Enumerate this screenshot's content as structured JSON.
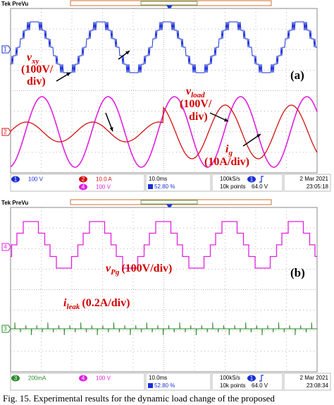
{
  "panels": [
    {
      "header": "Tek PreVu",
      "label": "(a)",
      "markers": [
        "1",
        "2"
      ],
      "annotations": [
        {
          "symbol": "v",
          "subscript": "xy",
          "lines": [
            "(100V/",
            "div)"
          ]
        },
        {
          "symbol": "v",
          "subscript": "load",
          "lines": [
            "(100V/",
            "div)"
          ]
        },
        {
          "symbol": "i",
          "subscript": "g",
          "lines": [
            "(10A/div)"
          ]
        }
      ],
      "status": {
        "channels": [
          {
            "number": "1",
            "scale": "100 V"
          },
          {
            "number": "2",
            "scale": "10.0 A"
          },
          {
            "number": "4",
            "scale": "100 V"
          }
        ],
        "timebase": "10.0ms",
        "percent": "52.80 %",
        "rate": "100kS/s",
        "points": "10k points",
        "trigger_channel": "1",
        "trigger_level": "64.0 V",
        "date": "2 Mar 2021",
        "time": "23:05:18"
      }
    },
    {
      "header": "Tek PreVu",
      "label": "(b)",
      "markers": [
        "4",
        "3"
      ],
      "annotations": [
        {
          "symbol": "v",
          "subscript": "Pg",
          "lines": [
            "(100V/div)"
          ]
        },
        {
          "symbol": "i",
          "subscript": "leak",
          "lines": [
            "(0.2A/div)"
          ]
        }
      ],
      "status": {
        "channels": [
          {
            "number": "3",
            "scale": "200mA"
          },
          {
            "number": "4",
            "scale": "100 V"
          }
        ],
        "timebase": "10.0ms",
        "percent": "52.80 %",
        "rate": "100kS/s",
        "points": "10k points",
        "trigger_channel": "1",
        "trigger_level": "64.0 V",
        "date": "2 Mar 2021",
        "time": "23:08:34"
      }
    }
  ],
  "caption": "Fig. 15.   Experimental results for the dynamic load change of the proposed"
}
